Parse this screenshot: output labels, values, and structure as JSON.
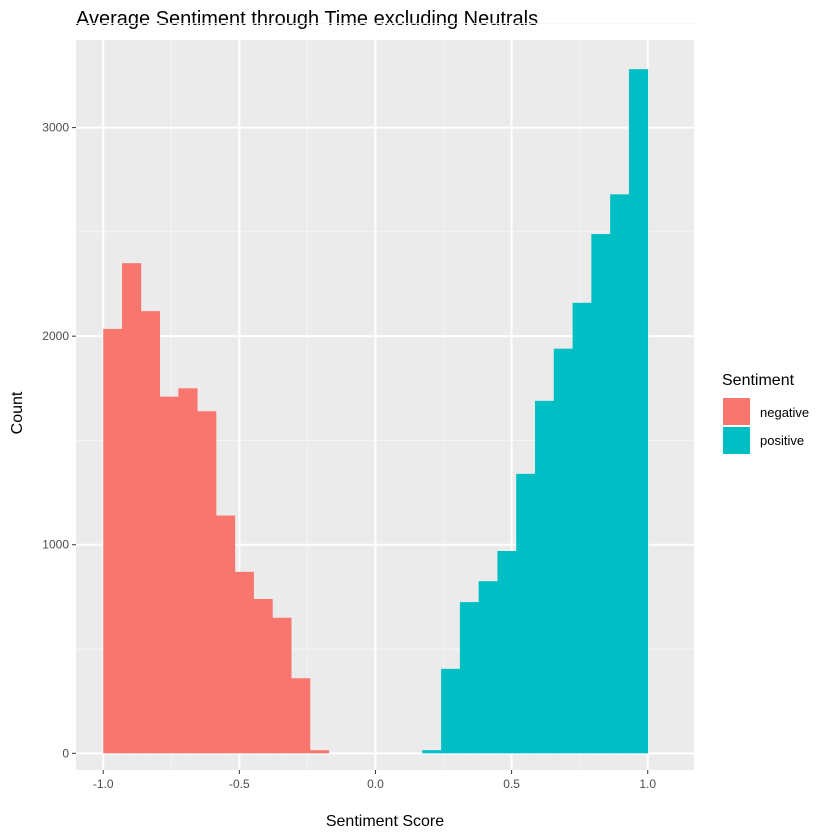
{
  "chart_data": {
    "type": "bar",
    "subtype": "histogram",
    "title": "Average Sentiment through Time excluding Neutrals",
    "xlabel": "Sentiment Score",
    "ylabel": "Count",
    "xlim": [
      -1.1,
      1.17
    ],
    "ylim": [
      -80,
      3420
    ],
    "x_ticks": [
      -1.0,
      -0.5,
      0.0,
      0.5,
      1.0
    ],
    "x_tick_labels": [
      "-1.0",
      "-0.5",
      "0.0",
      "0.5",
      "1.0"
    ],
    "y_ticks": [
      0,
      1000,
      2000,
      3000
    ],
    "y_tick_labels": [
      "0",
      "1000",
      "2000",
      "3000"
    ],
    "grid": true,
    "legend": {
      "title": "Sentiment",
      "position": "right",
      "entries": [
        {
          "label": "negative",
          "color": "#F8766D"
        },
        {
          "label": "positive",
          "color": "#00BFC4"
        }
      ]
    },
    "series": [
      {
        "name": "negative",
        "color": "#F8766D",
        "bins": [
          {
            "x0": -1.0,
            "x1": -0.931,
            "count": 2035
          },
          {
            "x0": -0.931,
            "x1": -0.862,
            "count": 2350
          },
          {
            "x0": -0.862,
            "x1": -0.793,
            "count": 2120
          },
          {
            "x0": -0.793,
            "x1": -0.724,
            "count": 1710
          },
          {
            "x0": -0.724,
            "x1": -0.655,
            "count": 1750
          },
          {
            "x0": -0.655,
            "x1": -0.586,
            "count": 1640
          },
          {
            "x0": -0.586,
            "x1": -0.517,
            "count": 1140
          },
          {
            "x0": -0.517,
            "x1": -0.448,
            "count": 870
          },
          {
            "x0": -0.448,
            "x1": -0.379,
            "count": 740
          },
          {
            "x0": -0.379,
            "x1": -0.31,
            "count": 650
          },
          {
            "x0": -0.31,
            "x1": -0.241,
            "count": 360
          },
          {
            "x0": -0.241,
            "x1": -0.172,
            "count": 15
          }
        ]
      },
      {
        "name": "positive",
        "color": "#00BFC4",
        "bins": [
          {
            "x0": 0.172,
            "x1": 0.241,
            "count": 15
          },
          {
            "x0": 0.241,
            "x1": 0.31,
            "count": 405
          },
          {
            "x0": 0.31,
            "x1": 0.379,
            "count": 725
          },
          {
            "x0": 0.379,
            "x1": 0.448,
            "count": 825
          },
          {
            "x0": 0.448,
            "x1": 0.517,
            "count": 970
          },
          {
            "x0": 0.517,
            "x1": 0.586,
            "count": 1340
          },
          {
            "x0": 0.586,
            "x1": 0.655,
            "count": 1690
          },
          {
            "x0": 0.655,
            "x1": 0.724,
            "count": 1940
          },
          {
            "x0": 0.724,
            "x1": 0.793,
            "count": 2160
          },
          {
            "x0": 0.793,
            "x1": 0.862,
            "count": 2490
          },
          {
            "x0": 0.862,
            "x1": 0.931,
            "count": 2680
          },
          {
            "x0": 0.931,
            "x1": 1.0,
            "count": 3280
          }
        ]
      }
    ]
  },
  "style": {
    "panel_background": "#EBEBEB",
    "grid_major_color": "#FFFFFF",
    "grid_minor_color": "#F5F5F5"
  }
}
